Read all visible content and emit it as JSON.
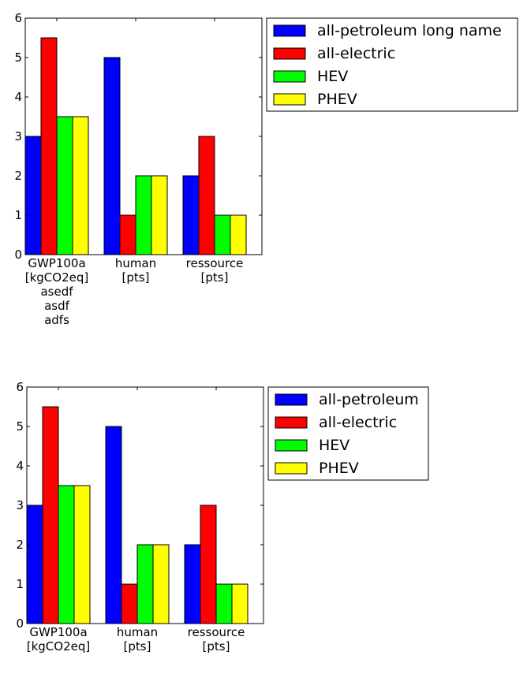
{
  "chart_data": [
    {
      "type": "bar",
      "categories": [
        "GWP100a\n[kgCO2eq]\n\nasedf\nasdf\nadfs",
        "human\n[pts]",
        "ressource\n[pts]"
      ],
      "series": [
        {
          "name": "all-petroleum long name",
          "values": [
            3,
            5,
            2
          ],
          "color": "#0000ff"
        },
        {
          "name": "all-electric",
          "values": [
            5.5,
            1,
            3
          ],
          "color": "#ff0000"
        },
        {
          "name": "HEV",
          "values": [
            3.5,
            2,
            1
          ],
          "color": "#00ff00"
        },
        {
          "name": "PHEV",
          "values": [
            3.5,
            2,
            1
          ],
          "color": "#ffff00"
        }
      ],
      "ylim": [
        0,
        6
      ],
      "yticks": [
        "0",
        "1",
        "2",
        "3",
        "4",
        "5",
        "6"
      ],
      "grid": false,
      "legend_position": "outside-right-top"
    },
    {
      "type": "bar",
      "categories": [
        "GWP100a\n[kgCO2eq]",
        "human\n[pts]",
        "ressource\n[pts]"
      ],
      "series": [
        {
          "name": "all-petroleum",
          "values": [
            3,
            5,
            2
          ],
          "color": "#0000ff"
        },
        {
          "name": "all-electric",
          "values": [
            5.5,
            1,
            3
          ],
          "color": "#ff0000"
        },
        {
          "name": "HEV",
          "values": [
            3.5,
            2,
            1
          ],
          "color": "#00ff00"
        },
        {
          "name": "PHEV",
          "values": [
            3.5,
            2,
            1
          ],
          "color": "#ffff00"
        }
      ],
      "ylim": [
        0,
        6
      ],
      "yticks": [
        "0",
        "1",
        "2",
        "3",
        "4",
        "5",
        "6"
      ],
      "grid": false,
      "legend_position": "outside-right-top"
    }
  ]
}
